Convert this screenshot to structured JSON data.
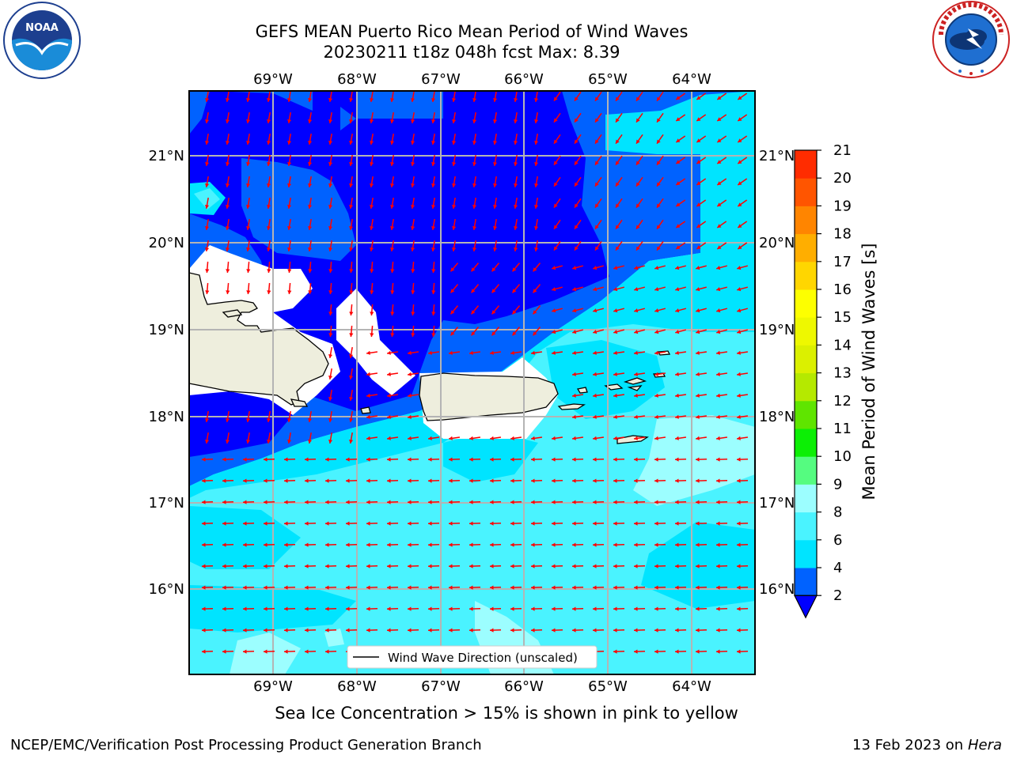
{
  "header": {
    "title_line1": "GEFS MEAN Puerto Rico Mean Period of Wind Waves",
    "title_line2": "20230211 t18z 048h fcst   Max: 8.39"
  },
  "map": {
    "lon_labels": [
      "69°W",
      "68°W",
      "67°W",
      "66°W",
      "65°W",
      "64°W"
    ],
    "lat_labels": [
      "21°N",
      "20°N",
      "19°N",
      "18°N",
      "17°N",
      "16°N"
    ],
    "legend_label": "Wind Wave Direction (unscaled)",
    "arrow_color": "#ff0000",
    "land_color": "#eeeedd",
    "grid_color": "#b4b4b4"
  },
  "colorbar": {
    "label": "Mean Period of Wind Waves [s]",
    "ticks": [
      "2",
      "4",
      "6",
      "8",
      "9",
      "10",
      "11",
      "12",
      "13",
      "14",
      "15",
      "16",
      "17",
      "18",
      "19",
      "20",
      "21"
    ],
    "colors": [
      "#0062ff",
      "#00e4ff",
      "#4af3ff",
      "#9cfeff",
      "#55fc80",
      "#0cef05",
      "#5fe500",
      "#b5e900",
      "#dbf000",
      "#eef800",
      "#fdff00",
      "#ffd600",
      "#ffae00",
      "#ff8500",
      "#ff5500",
      "#ff2c00",
      "#ff0000"
    ],
    "under_color": "#0000ff"
  },
  "footer": {
    "subtitle": "Sea Ice Concentration > 15% is shown in pink to yellow",
    "left": "NCEP/EMC/Verification Post Processing Product Generation Branch",
    "right_date": "13 Feb 2023 on",
    "right_host": "Hera"
  },
  "logos": {
    "left": "noaa-logo",
    "right": "nws-logo"
  }
}
